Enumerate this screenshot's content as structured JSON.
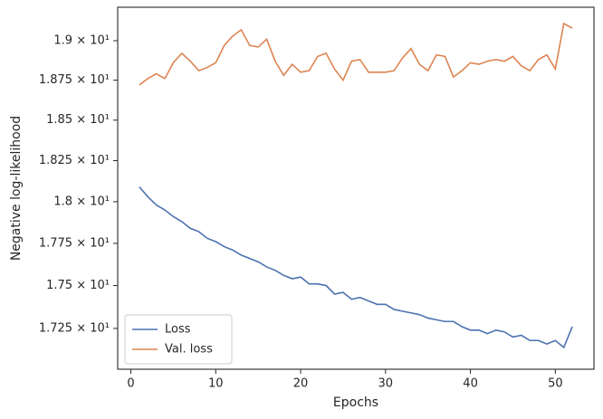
{
  "chart_data": {
    "type": "line",
    "xlabel": "Epochs",
    "ylabel": "Negative log-likelihood",
    "x": [
      1,
      2,
      3,
      4,
      5,
      6,
      7,
      8,
      9,
      10,
      11,
      12,
      13,
      14,
      15,
      16,
      17,
      18,
      19,
      20,
      21,
      22,
      23,
      24,
      25,
      26,
      27,
      28,
      29,
      30,
      31,
      32,
      33,
      34,
      35,
      36,
      37,
      38,
      39,
      40,
      41,
      42,
      43,
      44,
      45,
      46,
      47,
      48,
      49,
      50,
      51,
      52
    ],
    "series": [
      {
        "name": "Loss",
        "color": "#4c72b0",
        "values": [
          18.09,
          18.03,
          17.98,
          17.95,
          17.91,
          17.88,
          17.84,
          17.82,
          17.78,
          17.76,
          17.73,
          17.71,
          17.68,
          17.66,
          17.64,
          17.61,
          17.59,
          17.56,
          17.54,
          17.55,
          17.51,
          17.51,
          17.5,
          17.45,
          17.46,
          17.42,
          17.43,
          17.41,
          17.39,
          17.39,
          17.36,
          17.35,
          17.34,
          17.33,
          17.31,
          17.3,
          17.29,
          17.29,
          17.26,
          17.24,
          17.24,
          17.22,
          17.24,
          17.23,
          17.2,
          17.21,
          17.18,
          17.18,
          17.16,
          17.18,
          17.14,
          17.26
        ]
      },
      {
        "name": "Val. loss",
        "color": "#dd8452",
        "values": [
          18.72,
          18.76,
          18.79,
          18.76,
          18.86,
          18.92,
          18.87,
          18.81,
          18.83,
          18.86,
          18.97,
          19.03,
          19.07,
          18.97,
          18.96,
          19.01,
          18.87,
          18.78,
          18.85,
          18.8,
          18.81,
          18.9,
          18.92,
          18.82,
          18.75,
          18.87,
          18.88,
          18.8,
          18.8,
          18.8,
          18.81,
          18.89,
          18.95,
          18.85,
          18.81,
          18.91,
          18.9,
          18.77,
          18.81,
          18.86,
          18.85,
          18.87,
          18.88,
          18.87,
          18.9,
          18.84,
          18.81,
          18.88,
          18.91,
          18.82,
          19.11,
          19.08
        ]
      }
    ],
    "xlim": [
      -1.55,
      54.55
    ],
    "xticks": [
      0,
      10,
      20,
      30,
      40,
      50
    ],
    "ylim": [
      17.015,
      19.215
    ],
    "log_scale": true,
    "yticks": [
      {
        "value": 17.25,
        "label": "1.725 × 10¹"
      },
      {
        "value": 17.5,
        "label": "1.75 × 10¹"
      },
      {
        "value": 17.75,
        "label": "1.775 × 10¹"
      },
      {
        "value": 18,
        "label": "1.8 × 10¹"
      },
      {
        "value": 18.25,
        "label": "1.825 × 10¹"
      },
      {
        "value": 18.5,
        "label": "1.85 × 10¹"
      },
      {
        "value": 18.75,
        "label": "1.875 × 10¹"
      },
      {
        "value": 19,
        "label": "1.9 × 10¹"
      }
    ],
    "legend": "lower left",
    "grid": false
  }
}
